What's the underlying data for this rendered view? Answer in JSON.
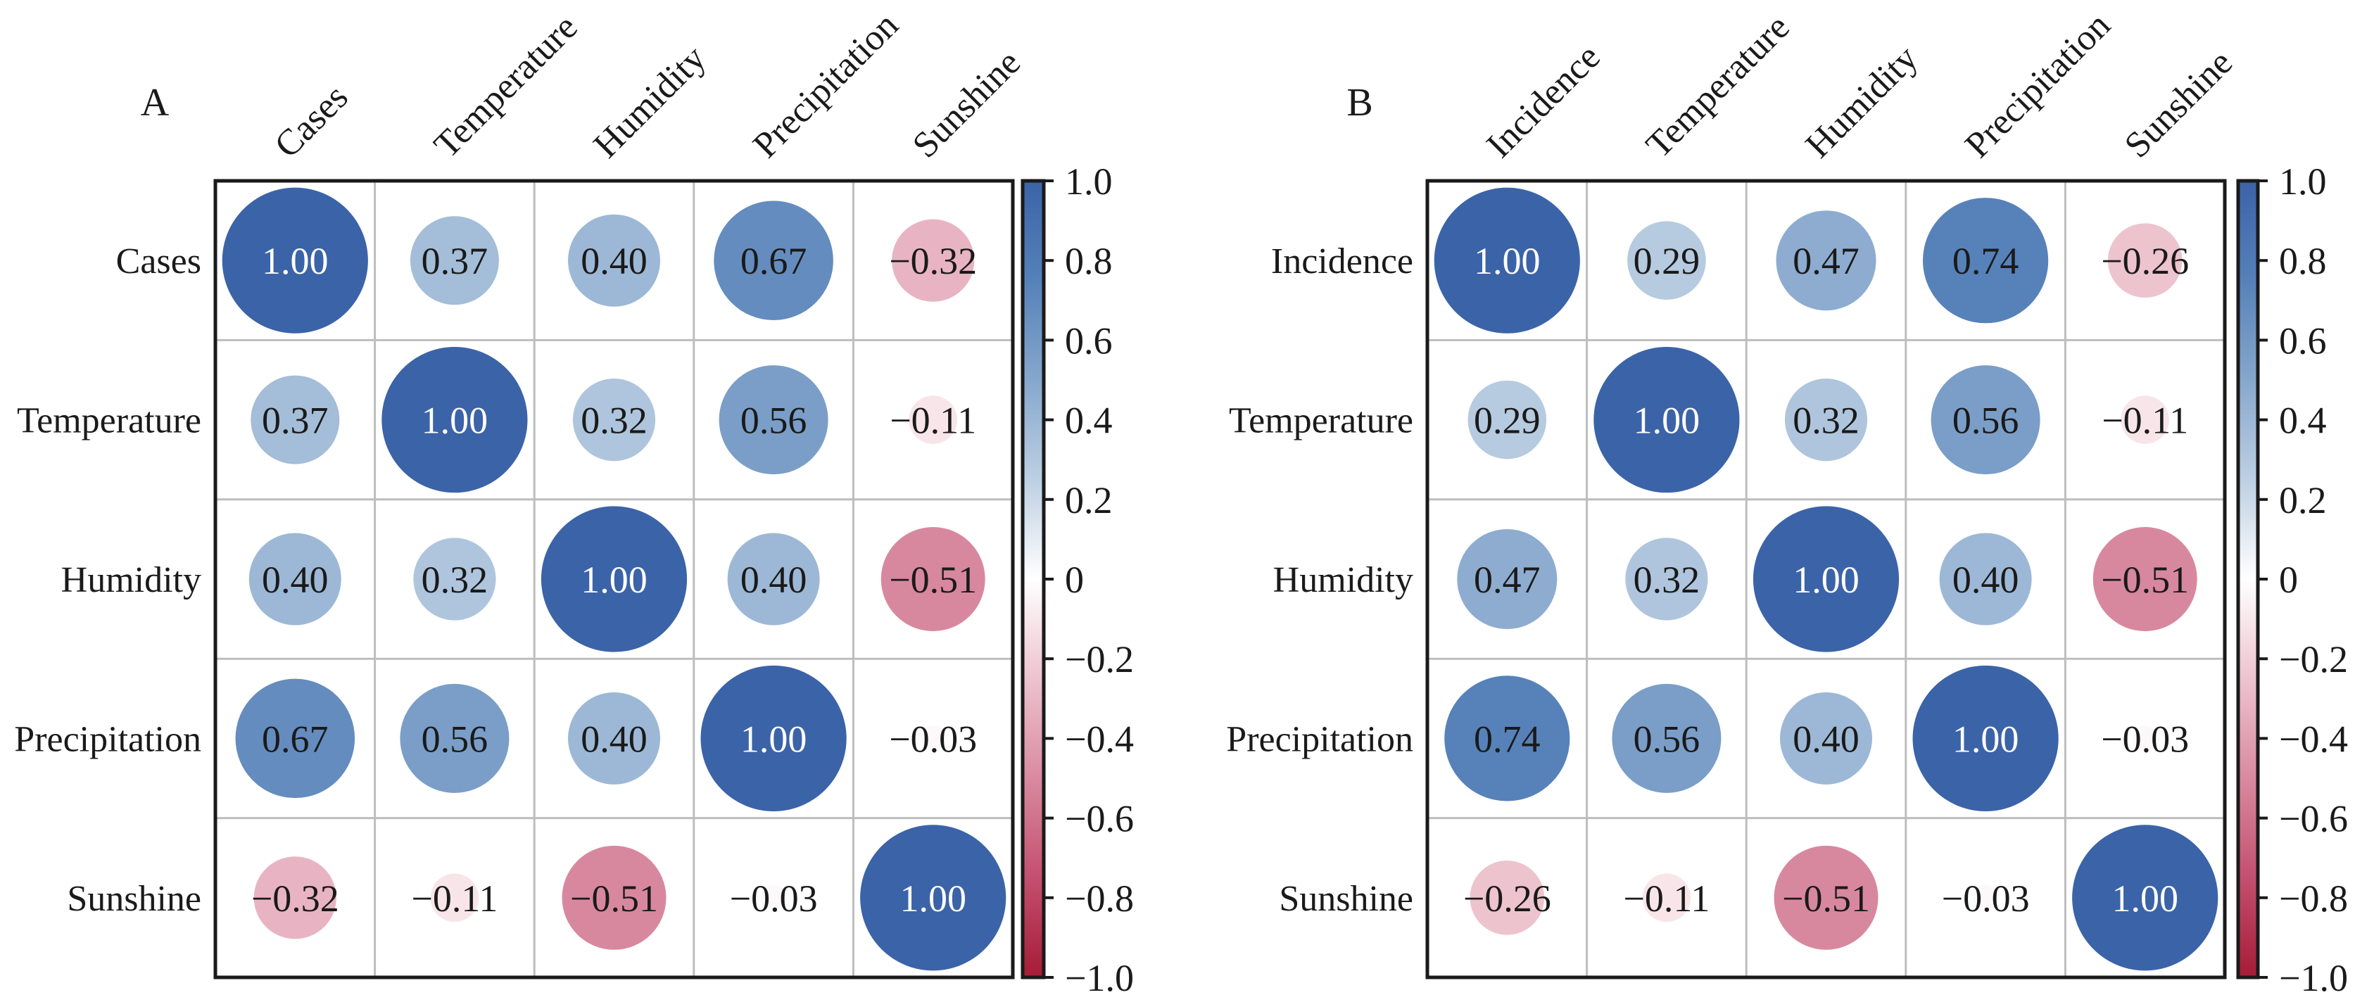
{
  "chart_data": [
    {
      "type": "heatmap",
      "subtype": "correlation-circle-matrix",
      "panel_label": "A",
      "row_labels": [
        "Cases",
        "Temperature",
        "Humidity",
        "Precipitation",
        "Sunshine"
      ],
      "col_labels": [
        "Cases",
        "Temperature",
        "Humidity",
        "Precipitation",
        "Sunshine"
      ],
      "values": [
        [
          1.0,
          0.37,
          0.4,
          0.67,
          -0.32
        ],
        [
          0.37,
          1.0,
          0.32,
          0.56,
          -0.11
        ],
        [
          0.4,
          0.32,
          1.0,
          0.4,
          -0.51
        ],
        [
          0.67,
          0.56,
          0.4,
          1.0,
          -0.03
        ],
        [
          -0.32,
          -0.11,
          -0.51,
          -0.03,
          1.0
        ]
      ],
      "value_labels": [
        [
          "1.00",
          "0.37",
          "0.40",
          "0.67",
          "−0.32"
        ],
        [
          "0.37",
          "1.00",
          "0.32",
          "0.56",
          "−0.11"
        ],
        [
          "0.40",
          "0.32",
          "1.00",
          "0.40",
          "−0.51"
        ],
        [
          "0.67",
          "0.56",
          "0.40",
          "1.00",
          "−0.03"
        ],
        [
          "−0.32",
          "−0.11",
          "−0.51",
          "−0.03",
          "1.00"
        ]
      ],
      "colorbar": {
        "range": [
          -1.0,
          1.0
        ],
        "ticks": [
          1.0,
          0.8,
          0.6,
          0.4,
          0.2,
          0,
          -0.2,
          -0.4,
          -0.6,
          -0.8,
          -1.0
        ],
        "tick_labels": [
          "1.0",
          "0.8",
          "0.6",
          "0.4",
          "0.2",
          "0",
          "−0.2",
          "−0.4",
          "−0.6",
          "−0.8",
          "−1.0"
        ],
        "colormap": "RdBu",
        "placement": "right"
      },
      "grid": true
    },
    {
      "type": "heatmap",
      "subtype": "correlation-circle-matrix",
      "panel_label": "B",
      "row_labels": [
        "Incidence",
        "Temperature",
        "Humidity",
        "Precipitation",
        "Sunshine"
      ],
      "col_labels": [
        "Incidence",
        "Temperature",
        "Humidity",
        "Precipitation",
        "Sunshine"
      ],
      "values": [
        [
          1.0,
          0.29,
          0.47,
          0.74,
          -0.26
        ],
        [
          0.29,
          1.0,
          0.32,
          0.56,
          -0.11
        ],
        [
          0.47,
          0.32,
          1.0,
          0.4,
          -0.51
        ],
        [
          0.74,
          0.56,
          0.4,
          1.0,
          -0.03
        ],
        [
          -0.26,
          -0.11,
          -0.51,
          -0.03,
          1.0
        ]
      ],
      "value_labels": [
        [
          "1.00",
          "0.29",
          "0.47",
          "0.74",
          "−0.26"
        ],
        [
          "0.29",
          "1.00",
          "0.32",
          "0.56",
          "−0.11"
        ],
        [
          "0.47",
          "0.32",
          "1.00",
          "0.40",
          "−0.51"
        ],
        [
          "0.74",
          "0.56",
          "0.40",
          "1.00",
          "−0.03"
        ],
        [
          "−0.26",
          "−0.11",
          "−0.51",
          "−0.03",
          "1.00"
        ]
      ],
      "colorbar": {
        "range": [
          -1.0,
          1.0
        ],
        "ticks": [
          1.0,
          0.8,
          0.6,
          0.4,
          0.2,
          0,
          -0.2,
          -0.4,
          -0.6,
          -0.8,
          -1.0
        ],
        "tick_labels": [
          "1.0",
          "0.8",
          "0.6",
          "0.4",
          "0.2",
          "0",
          "−0.2",
          "−0.4",
          "−0.6",
          "−0.8",
          "−1.0"
        ],
        "colormap": "RdBu",
        "placement": "right"
      },
      "grid": true
    }
  ],
  "colors": {
    "positive_max": "#3b63a8",
    "neutral": "#ffffff",
    "negative_max": "#a51c36",
    "gridline": "#bdbdbd",
    "frame": "#1a1a1a",
    "text_dark": "#1a1a1a",
    "text_light": "#ffffff"
  }
}
